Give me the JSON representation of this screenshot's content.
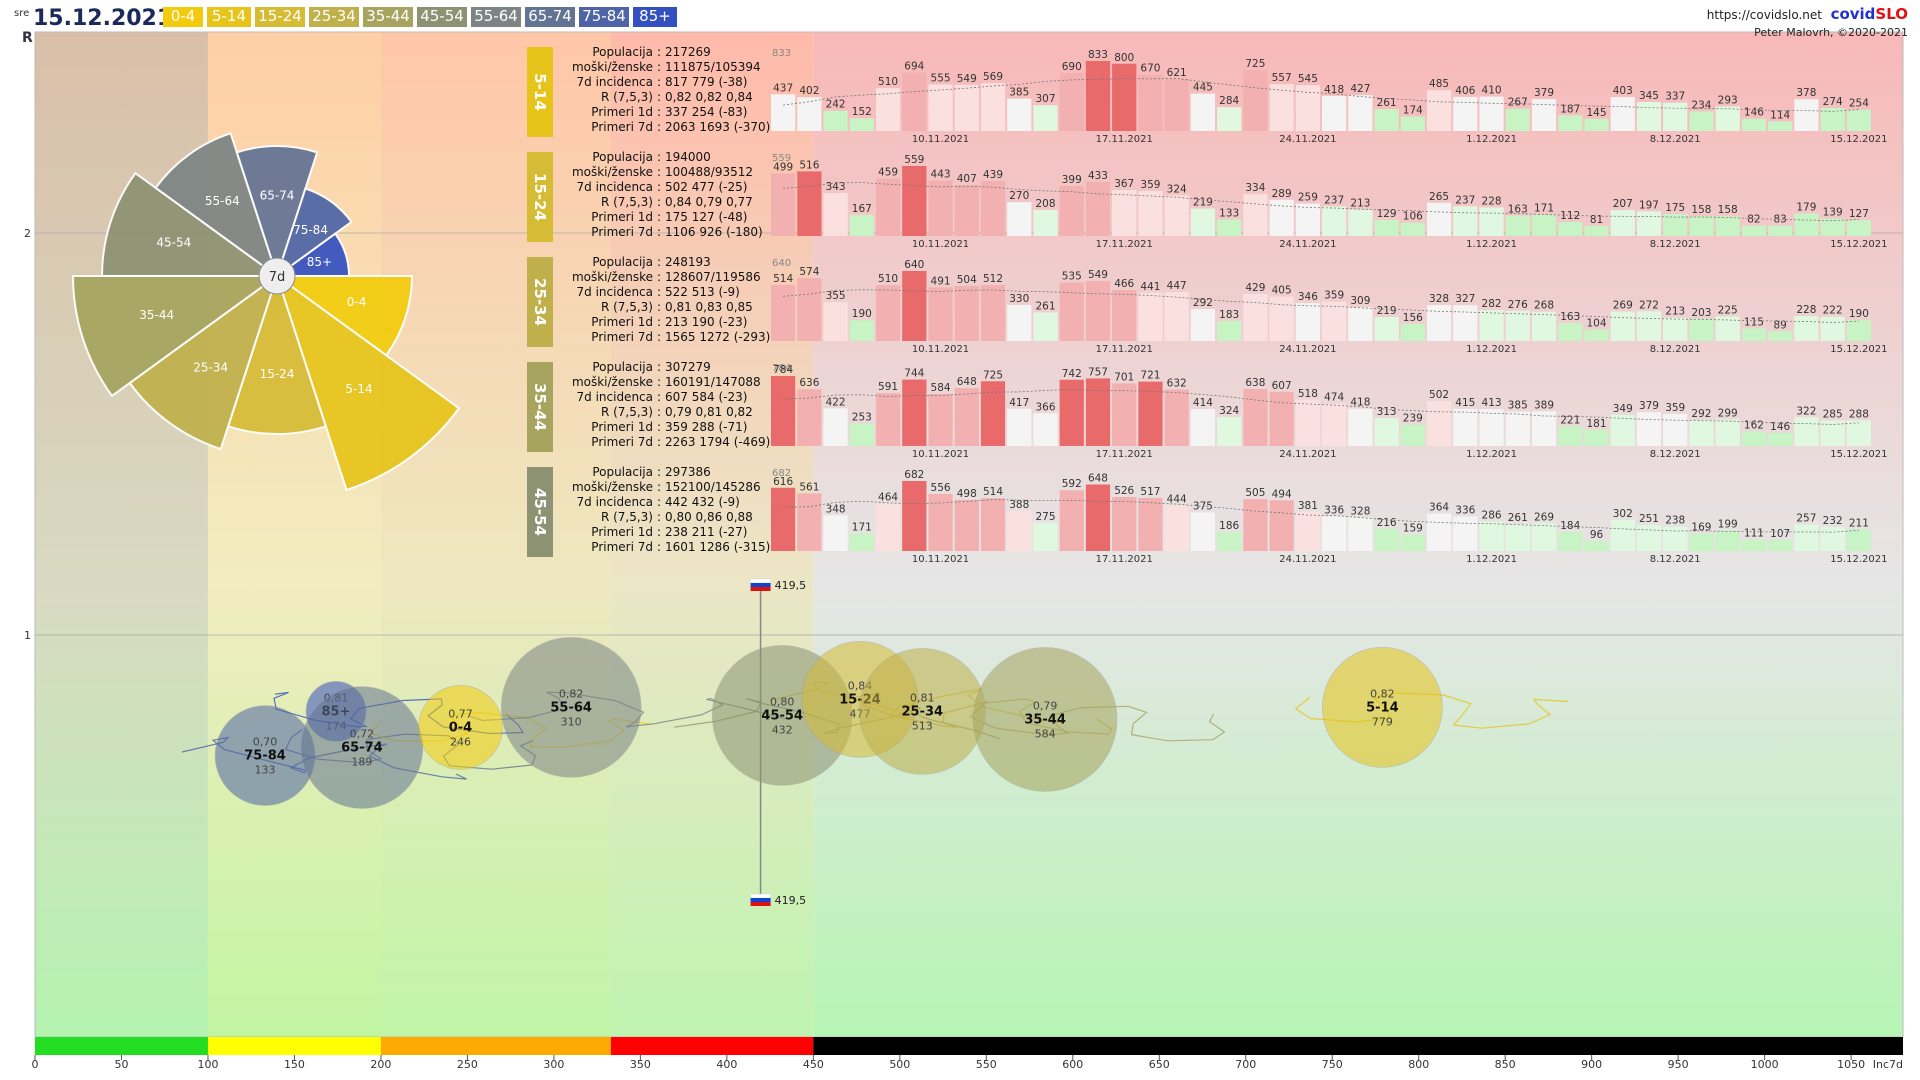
{
  "header": {
    "day": "sre",
    "date": "15.12.2021",
    "legend": [
      {
        "label": "0-4",
        "color": "#f2cc0c"
      },
      {
        "label": "5-14",
        "color": "#e6c419"
      },
      {
        "label": "15-24",
        "color": "#d6bb34"
      },
      {
        "label": "25-34",
        "color": "#bfb04b"
      },
      {
        "label": "35-44",
        "color": "#a6a45e"
      },
      {
        "label": "45-54",
        "color": "#8c9272"
      },
      {
        "label": "55-64",
        "color": "#7c8484"
      },
      {
        "label": "65-74",
        "color": "#637394"
      },
      {
        "label": "75-84",
        "color": "#4e64a6"
      },
      {
        "label": "85+",
        "color": "#3450c0"
      }
    ],
    "url": "https://covidslo.net",
    "brand_a": "covid",
    "brand_b": "SLO",
    "author": "Peter Malovrh, ©2020-2021"
  },
  "axes": {
    "r_label": "R",
    "r_ticks": [
      "2",
      "1"
    ],
    "x_label": "Inc7d",
    "x_ticks": [
      "0",
      "50",
      "100",
      "150",
      "200",
      "250",
      "300",
      "350",
      "400",
      "450",
      "500",
      "550",
      "600",
      "650",
      "700",
      "750",
      "800",
      "850",
      "900",
      "950",
      "1000",
      "1050"
    ]
  },
  "flags": {
    "top": "419,5",
    "bottom": "419,5"
  },
  "rose": {
    "center_label": "7d",
    "slices": [
      {
        "label": "0-4",
        "color": "#f2cc0c"
      },
      {
        "label": "5-14",
        "color": "#e6c419"
      },
      {
        "label": "15-24",
        "color": "#d6bb34"
      },
      {
        "label": "25-34",
        "color": "#bfb04b"
      },
      {
        "label": "35-44",
        "color": "#a6a45e"
      },
      {
        "label": "45-54",
        "color": "#8c9272"
      },
      {
        "label": "55-64",
        "color": "#7c8484"
      },
      {
        "label": "65-74",
        "color": "#637394"
      },
      {
        "label": "75-84",
        "color": "#4e64a6"
      },
      {
        "label": "85+",
        "color": "#3450c0"
      }
    ]
  },
  "panels": [
    {
      "group": "5-14",
      "color": "#e6c419",
      "info": [
        [
          "Populacija",
          "217269"
        ],
        [
          "moški/ženske",
          "111875/105394"
        ],
        [
          "7d incidenca",
          "817 779 (-38)"
        ],
        [
          "R (7,5,3)",
          "0,82 0,82 0,84"
        ],
        [
          "Primeri 1d",
          "337 254 (-83)"
        ],
        [
          "Primeri 7d",
          "2063 1693 (-370)"
        ]
      ],
      "top_tick": "833",
      "values": [
        437,
        402,
        242,
        152,
        510,
        694,
        555,
        549,
        569,
        385,
        307,
        690,
        833,
        800,
        670,
        621,
        445,
        284,
        725,
        557,
        545,
        418,
        427,
        261,
        174,
        485,
        406,
        410,
        267,
        379,
        187,
        145,
        403,
        345,
        337,
        234,
        293,
        146,
        114,
        378,
        274,
        254
      ]
    },
    {
      "group": "15-24",
      "color": "#d6bb34",
      "info": [
        [
          "Populacija",
          "194000"
        ],
        [
          "moški/ženske",
          "100488/93512"
        ],
        [
          "7d incidenca",
          "502 477 (-25)"
        ],
        [
          "R (7,5,3)",
          "0,84 0,79 0,77"
        ],
        [
          "Primeri 1d",
          "175 127 (-48)"
        ],
        [
          "Primeri 7d",
          "1106 926 (-180)"
        ]
      ],
      "top_tick": "559",
      "values": [
        499,
        516,
        343,
        167,
        459,
        559,
        443,
        407,
        439,
        270,
        208,
        399,
        433,
        367,
        359,
        324,
        219,
        133,
        334,
        289,
        259,
        237,
        213,
        129,
        106,
        265,
        237,
        228,
        163,
        171,
        112,
        81,
        207,
        197,
        175,
        158,
        158,
        82,
        83,
        179,
        139,
        127
      ]
    },
    {
      "group": "25-34",
      "color": "#bfb04b",
      "info": [
        [
          "Populacija",
          "248193"
        ],
        [
          "moški/ženske",
          "128607/119586"
        ],
        [
          "7d incidenca",
          "522 513 (-9)"
        ],
        [
          "R (7,5,3)",
          "0,81 0,83 0,85"
        ],
        [
          "Primeri 1d",
          "213 190 (-23)"
        ],
        [
          "Primeri 7d",
          "1565 1272 (-293)"
        ]
      ],
      "top_tick": "640",
      "values": [
        514,
        574,
        355,
        190,
        510,
        640,
        491,
        504,
        512,
        330,
        261,
        535,
        549,
        466,
        441,
        447,
        292,
        183,
        429,
        405,
        346,
        359,
        309,
        219,
        156,
        328,
        327,
        282,
        276,
        268,
        163,
        104,
        269,
        272,
        213,
        203,
        225,
        115,
        89,
        228,
        222,
        190
      ]
    },
    {
      "group": "35-44",
      "color": "#a6a45e",
      "info": [
        [
          "Populacija",
          "307279"
        ],
        [
          "moški/ženske",
          "160191/147088"
        ],
        [
          "7d incidenca",
          "607 584 (-23)"
        ],
        [
          "R (7,5,3)",
          "0,79 0,81 0,82"
        ],
        [
          "Primeri 1d",
          "359 288 (-71)"
        ],
        [
          "Primeri 7d",
          "2263 1794 (-469)"
        ]
      ],
      "top_tick": "784",
      "values": [
        784,
        636,
        422,
        253,
        591,
        744,
        584,
        648,
        725,
        417,
        366,
        742,
        757,
        701,
        721,
        632,
        414,
        324,
        638,
        607,
        518,
        474,
        418,
        313,
        239,
        502,
        415,
        413,
        385,
        389,
        221,
        181,
        349,
        379,
        359,
        292,
        299,
        162,
        146,
        322,
        285,
        288
      ]
    },
    {
      "group": "45-54",
      "color": "#8c9272",
      "info": [
        [
          "Populacija",
          "297386"
        ],
        [
          "moški/ženske",
          "152100/145286"
        ],
        [
          "7d incidenca",
          "442 432 (-9)"
        ],
        [
          "R (7,5,3)",
          "0,80 0,86 0,88"
        ],
        [
          "Primeri 1d",
          "238 211 (-27)"
        ],
        [
          "Primeri 7d",
          "1601 1286 (-315)"
        ]
      ],
      "top_tick": "682",
      "values": [
        616,
        561,
        348,
        171,
        464,
        682,
        556,
        498,
        514,
        388,
        275,
        592,
        648,
        526,
        517,
        444,
        375,
        186,
        505,
        494,
        381,
        336,
        328,
        216,
        159,
        364,
        336,
        286,
        261,
        269,
        184,
        96,
        302,
        251,
        238,
        169,
        199,
        111,
        107,
        257,
        232,
        211
      ]
    }
  ],
  "date_ticks": [
    "10.11.2021",
    "17.11.2021",
    "24.11.2021",
    "1.12.2021",
    "8.12.2021",
    "15.12.2021"
  ],
  "chart_data": {
    "type": "scatter",
    "xlabel": "Inc7d",
    "ylabel": "R",
    "xlim": [
      0,
      1080
    ],
    "ylim": [
      0,
      2.5
    ],
    "bubbles": [
      {
        "label": "75-84",
        "r": "0,70",
        "inc": "133",
        "x": 133,
        "y": 0.7,
        "color": "#4e64a6"
      },
      {
        "label": "85+",
        "r": "0,81",
        "inc": "174",
        "x": 174,
        "y": 0.81,
        "color": "#3450c0"
      },
      {
        "label": "65-74",
        "r": "0,72",
        "inc": "189",
        "x": 189,
        "y": 0.72,
        "color": "#637394"
      },
      {
        "label": "0-4",
        "r": "0,77",
        "inc": "246",
        "x": 246,
        "y": 0.77,
        "color": "#f2cc0c"
      },
      {
        "label": "55-64",
        "r": "0,82",
        "inc": "310",
        "x": 310,
        "y": 0.82,
        "color": "#7c8484"
      },
      {
        "label": "45-54",
        "r": "0,80",
        "inc": "432",
        "x": 432,
        "y": 0.8,
        "color": "#8c9272"
      },
      {
        "label": "15-24",
        "r": "0,84",
        "inc": "477",
        "x": 477,
        "y": 0.84,
        "color": "#d6bb34"
      },
      {
        "label": "25-34",
        "r": "0,81",
        "inc": "513",
        "x": 513,
        "y": 0.81,
        "color": "#bfb04b"
      },
      {
        "label": "35-44",
        "r": "0,79",
        "inc": "584",
        "x": 584,
        "y": 0.79,
        "color": "#a6a45e"
      },
      {
        "label": "5-14",
        "r": "0,82",
        "inc": "779",
        "x": 779,
        "y": 0.82,
        "color": "#e6c419"
      }
    ],
    "reference_line": {
      "x": 419.5,
      "label": "419,5"
    },
    "bands": [
      {
        "from": 0,
        "to": 100,
        "color": "#22dd22"
      },
      {
        "from": 100,
        "to": 200,
        "color": "#ffff00"
      },
      {
        "from": 200,
        "to": 333,
        "color": "#ffaa00"
      },
      {
        "from": 333,
        "to": 450,
        "color": "#ff0000"
      },
      {
        "from": 450,
        "to": 1080,
        "color": "#000000"
      }
    ]
  }
}
